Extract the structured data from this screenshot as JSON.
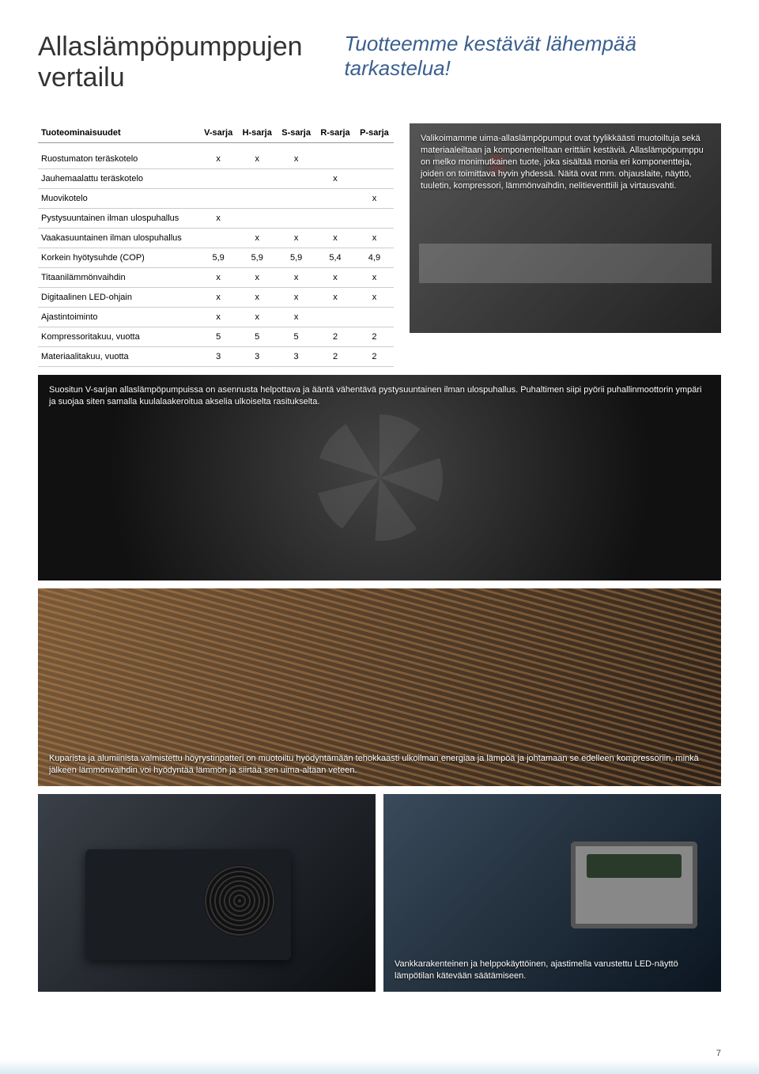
{
  "title_left": "Allaslämpöpumppujen vertailu",
  "title_right": "Tuotteemme kestävät lähempää tarkastelua!",
  "table": {
    "columns": [
      "Tuoteominaisuudet",
      "V-sarja",
      "H-sarja",
      "S-sarja",
      "R-sarja",
      "P-sarja"
    ],
    "rows": [
      {
        "label": "Ruostumaton teräskotelo",
        "cells": [
          "x",
          "x",
          "x",
          "",
          ""
        ]
      },
      {
        "label": "Jauhemaalattu teräskotelo",
        "cells": [
          "",
          "",
          "",
          "x",
          ""
        ]
      },
      {
        "label": "Muovikotelo",
        "cells": [
          "",
          "",
          "",
          "",
          "x"
        ]
      },
      {
        "label": "Pystysuuntainen ilman ulospuhallus",
        "cells": [
          "x",
          "",
          "",
          "",
          ""
        ]
      },
      {
        "label": "Vaakasuuntainen ilman ulospuhallus",
        "cells": [
          "",
          "x",
          "x",
          "x",
          "x"
        ]
      },
      {
        "label": "Korkein hyötysuhde (COP)",
        "cells": [
          "5,9",
          "5,9",
          "5,9",
          "5,4",
          "4,9"
        ]
      },
      {
        "label": "Titaanilämmönvaihdin",
        "cells": [
          "x",
          "x",
          "x",
          "x",
          "x"
        ]
      },
      {
        "label": "Digitaalinen LED-ohjain",
        "cells": [
          "x",
          "x",
          "x",
          "x",
          "x"
        ]
      },
      {
        "label": "Ajastintoiminto",
        "cells": [
          "x",
          "x",
          "x",
          "",
          ""
        ]
      },
      {
        "label": "Kompressoritakuu, vuotta",
        "cells": [
          "5",
          "5",
          "5",
          "2",
          "2"
        ]
      },
      {
        "label": "Materiaalitakuu, vuotta",
        "cells": [
          "3",
          "3",
          "3",
          "2",
          "2"
        ]
      }
    ]
  },
  "captions": {
    "components": "Valikoimamme uima-allaslämpöpumput ovat tyylikkäästi muotoiltuja sekä materiaaleiltaan ja komponenteiltaan erittäin kestäviä. Allaslämpöpumppu on melko monimutkainen tuote, joka sisältää monia eri komponentteja, joiden on toimittava hyvin yhdessä. Näitä ovat mm. ohjauslaite, näyttö, tuuletin, kompressori, lämmönvaihdin, nelitieventtiili ja virtausvahti.",
    "fan": "Suositun V-sarjan allaslämpöpumpuissa on asennusta helpottava ja ääntä vähentävä pystysuuntainen ilman ulospuhallus. Puhaltimen siipi pyörii puhallinmoottorin ympäri ja suojaa siten samalla kuulalaakeroitua akselia ulkoiselta rasitukselta.",
    "coil": "Kuparista ja alumiinista valmistettu höyrystinpatteri on muotoiltu hyödyntämään tehokkaasti ulkoilman energiaa ja lämpöä ja johtamaan se edelleen kompressoriin, minkä jälkeen lämmönvaihdin voi hyödyntää lämmön ja siirtää sen uima-altaan veteen.",
    "panel": "Vankkarakenteinen ja helppokäyttöinen, ajastimella varustettu LED-näyttö lämpötilan kätevään säätämiseen."
  },
  "page_number": "7"
}
